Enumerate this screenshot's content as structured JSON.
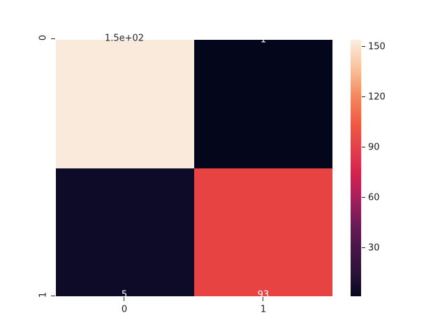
{
  "figure": {
    "background": "#ffffff",
    "text_color": "#1a1a1a"
  },
  "chart_data": {
    "type": "heatmap",
    "subtype": "confusion-matrix",
    "colormap": "rocket",
    "grid": false,
    "vmin": 1,
    "vmax": 154,
    "x_tick_labels": [
      "0",
      "1"
    ],
    "y_tick_labels": [
      "0",
      "1"
    ],
    "matrix": [
      [
        154,
        1
      ],
      [
        5,
        93
      ]
    ],
    "cells": [
      {
        "row": 0,
        "col": 0,
        "value": 154,
        "label": "1.5e+02",
        "color": "#faeadb",
        "label_color": "#262626"
      },
      {
        "row": 0,
        "col": 1,
        "value": 1,
        "label": "1",
        "color": "#04061b",
        "label_color": "#ffffff"
      },
      {
        "row": 1,
        "col": 0,
        "value": 5,
        "label": "5",
        "color": "#0d0b28",
        "label_color": "#ffffff"
      },
      {
        "row": 1,
        "col": 1,
        "value": 93,
        "label": "93",
        "color": "#e84343",
        "label_color": "#ffffff"
      }
    ],
    "colorbar": {
      "position": "right",
      "tick_labels": [
        "30",
        "60",
        "90",
        "120",
        "150"
      ],
      "tick_values": [
        30,
        60,
        90,
        120,
        150
      ],
      "gradient": [
        {
          "pos": 0,
          "color": "#070820"
        },
        {
          "pos": 9,
          "color": "#2a1237"
        },
        {
          "pos": 19,
          "color": "#481649"
        },
        {
          "pos": 28,
          "color": "#6c1b56"
        },
        {
          "pos": 38,
          "color": "#a41f5b"
        },
        {
          "pos": 48,
          "color": "#d5234f"
        },
        {
          "pos": 58,
          "color": "#e2414c"
        },
        {
          "pos": 67,
          "color": "#ee5942"
        },
        {
          "pos": 78,
          "color": "#f5875f"
        },
        {
          "pos": 88,
          "color": "#f8be97"
        },
        {
          "pos": 100,
          "color": "#fcedde"
        }
      ]
    }
  }
}
